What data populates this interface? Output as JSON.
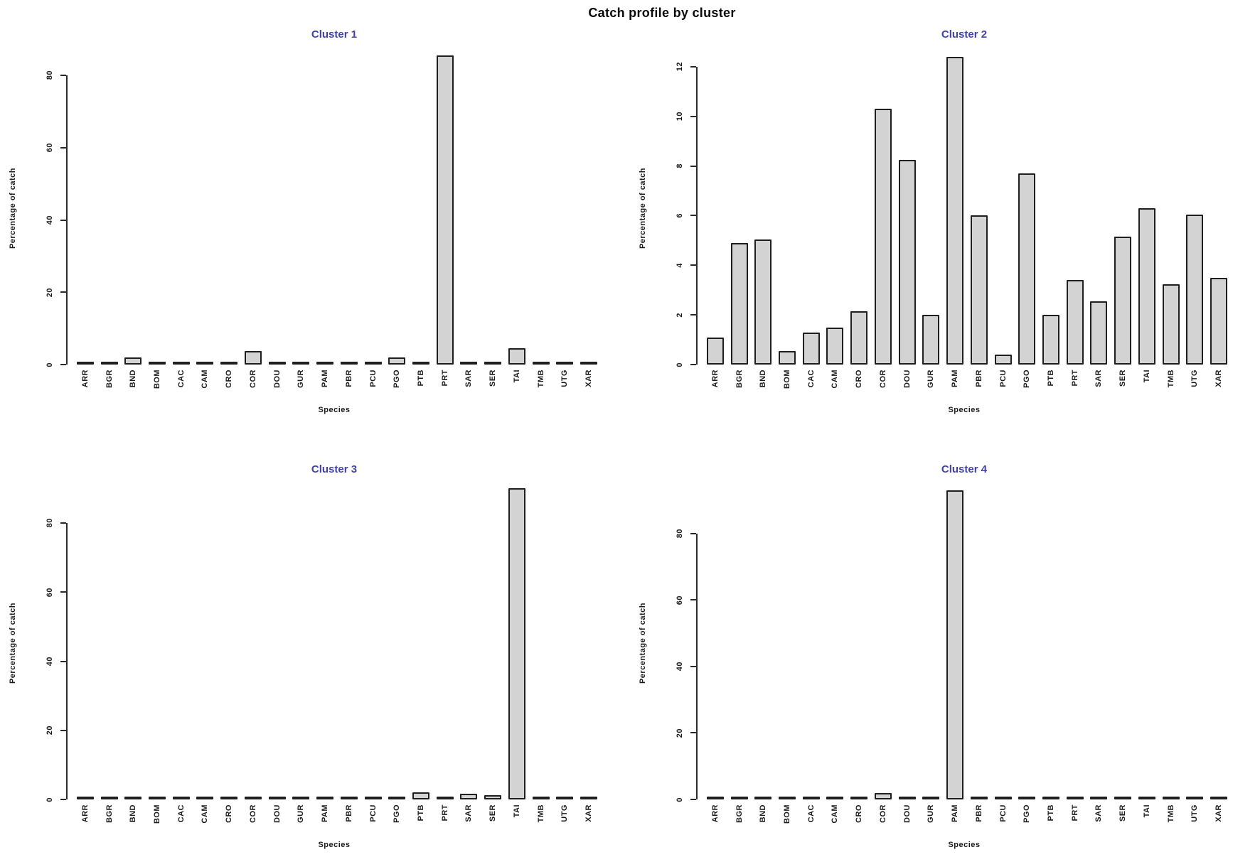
{
  "figure": {
    "title": "Catch profile by cluster",
    "xlabel": "Species",
    "ylabel": "Percentage of catch"
  },
  "colors": {
    "bar_fill": "#d3d3d3",
    "bar_border": "#1f1f1f",
    "cluster_title": "#4141a8",
    "axis": "#2b2b2b",
    "text": "#1c1c1c",
    "main_title": "#0a0a0a",
    "background": "#ffffff"
  },
  "chart_data": [
    {
      "type": "bar",
      "title": "Cluster 1",
      "xlabel": "Species",
      "ylabel": "Percentage of catch",
      "categories": [
        "ARR",
        "BGR",
        "BND",
        "BOM",
        "CAC",
        "CAM",
        "CRO",
        "COR",
        "DOU",
        "GUR",
        "PAM",
        "PBR",
        "PCU",
        "PGO",
        "PTB",
        "PRT",
        "SAR",
        "SER",
        "TAI",
        "TMB",
        "UTG",
        "XAR"
      ],
      "values": [
        0.1,
        0.5,
        2.0,
        0.1,
        0.1,
        0.1,
        0.3,
        3.7,
        0.1,
        0.1,
        0.15,
        0.15,
        0.1,
        2.0,
        0.1,
        85.5,
        0.15,
        0.4,
        4.5,
        0.1,
        0.4,
        0.1
      ],
      "yticks": [
        0,
        20,
        40,
        60,
        80
      ],
      "ylim": [
        0,
        86.5
      ],
      "grid": false,
      "legend": "none"
    },
    {
      "type": "bar",
      "title": "Cluster 2",
      "xlabel": "Species",
      "ylabel": "Percentage of catch",
      "categories": [
        "ARR",
        "BGR",
        "BND",
        "BOM",
        "CAC",
        "CAM",
        "CRO",
        "COR",
        "DOU",
        "GUR",
        "PAM",
        "PBR",
        "PCU",
        "PGO",
        "PTB",
        "PRT",
        "SAR",
        "SER",
        "TAI",
        "TMB",
        "UTG",
        "XAR"
      ],
      "values": [
        1.1,
        4.9,
        5.05,
        0.55,
        1.3,
        1.5,
        2.15,
        10.3,
        8.25,
        2.0,
        12.4,
        6.0,
        0.4,
        7.7,
        2.0,
        3.4,
        2.55,
        5.15,
        6.3,
        3.25,
        6.05,
        3.5
      ],
      "yticks": [
        0,
        2,
        4,
        6,
        8,
        10,
        12
      ],
      "ylim": [
        0,
        12.6
      ],
      "grid": false,
      "legend": "none"
    },
    {
      "type": "bar",
      "title": "Cluster 3",
      "xlabel": "Species",
      "ylabel": "Percentage of catch",
      "categories": [
        "ARR",
        "BGR",
        "BND",
        "BOM",
        "CAC",
        "CAM",
        "CRO",
        "COR",
        "DOU",
        "GUR",
        "PAM",
        "PBR",
        "PCU",
        "PGO",
        "PTB",
        "PRT",
        "SAR",
        "SER",
        "TAI",
        "TMB",
        "UTG",
        "XAR"
      ],
      "values": [
        0.05,
        0.3,
        0.8,
        0.15,
        0.1,
        0.1,
        0.15,
        0.8,
        0.4,
        0.1,
        0.3,
        0.3,
        0.15,
        0.05,
        2.0,
        0.3,
        1.7,
        1.3,
        90.0,
        0.4,
        0.5,
        0.05
      ],
      "yticks": [
        0,
        20,
        40,
        60,
        80
      ],
      "ylim": [
        0,
        90.5
      ],
      "grid": false,
      "legend": "none"
    },
    {
      "type": "bar",
      "title": "Cluster 4",
      "xlabel": "Species",
      "ylabel": "Percentage of catch",
      "categories": [
        "ARR",
        "BGR",
        "BND",
        "BOM",
        "CAC",
        "CAM",
        "CRO",
        "COR",
        "DOU",
        "GUR",
        "PAM",
        "PBR",
        "PCU",
        "PGO",
        "PTB",
        "PRT",
        "SAR",
        "SER",
        "TAI",
        "TMB",
        "UTG",
        "XAR"
      ],
      "values": [
        0.05,
        0.4,
        0.1,
        0.1,
        0.1,
        0.1,
        0.15,
        2.0,
        0.35,
        0.35,
        93.0,
        0.1,
        0.05,
        0.5,
        0.1,
        0.1,
        0.1,
        0.1,
        0.1,
        0.05,
        0.55,
        0.5
      ],
      "yticks": [
        0,
        20,
        40,
        60,
        80
      ],
      "ylim": [
        0,
        94.0
      ],
      "grid": false,
      "legend": "none"
    }
  ]
}
